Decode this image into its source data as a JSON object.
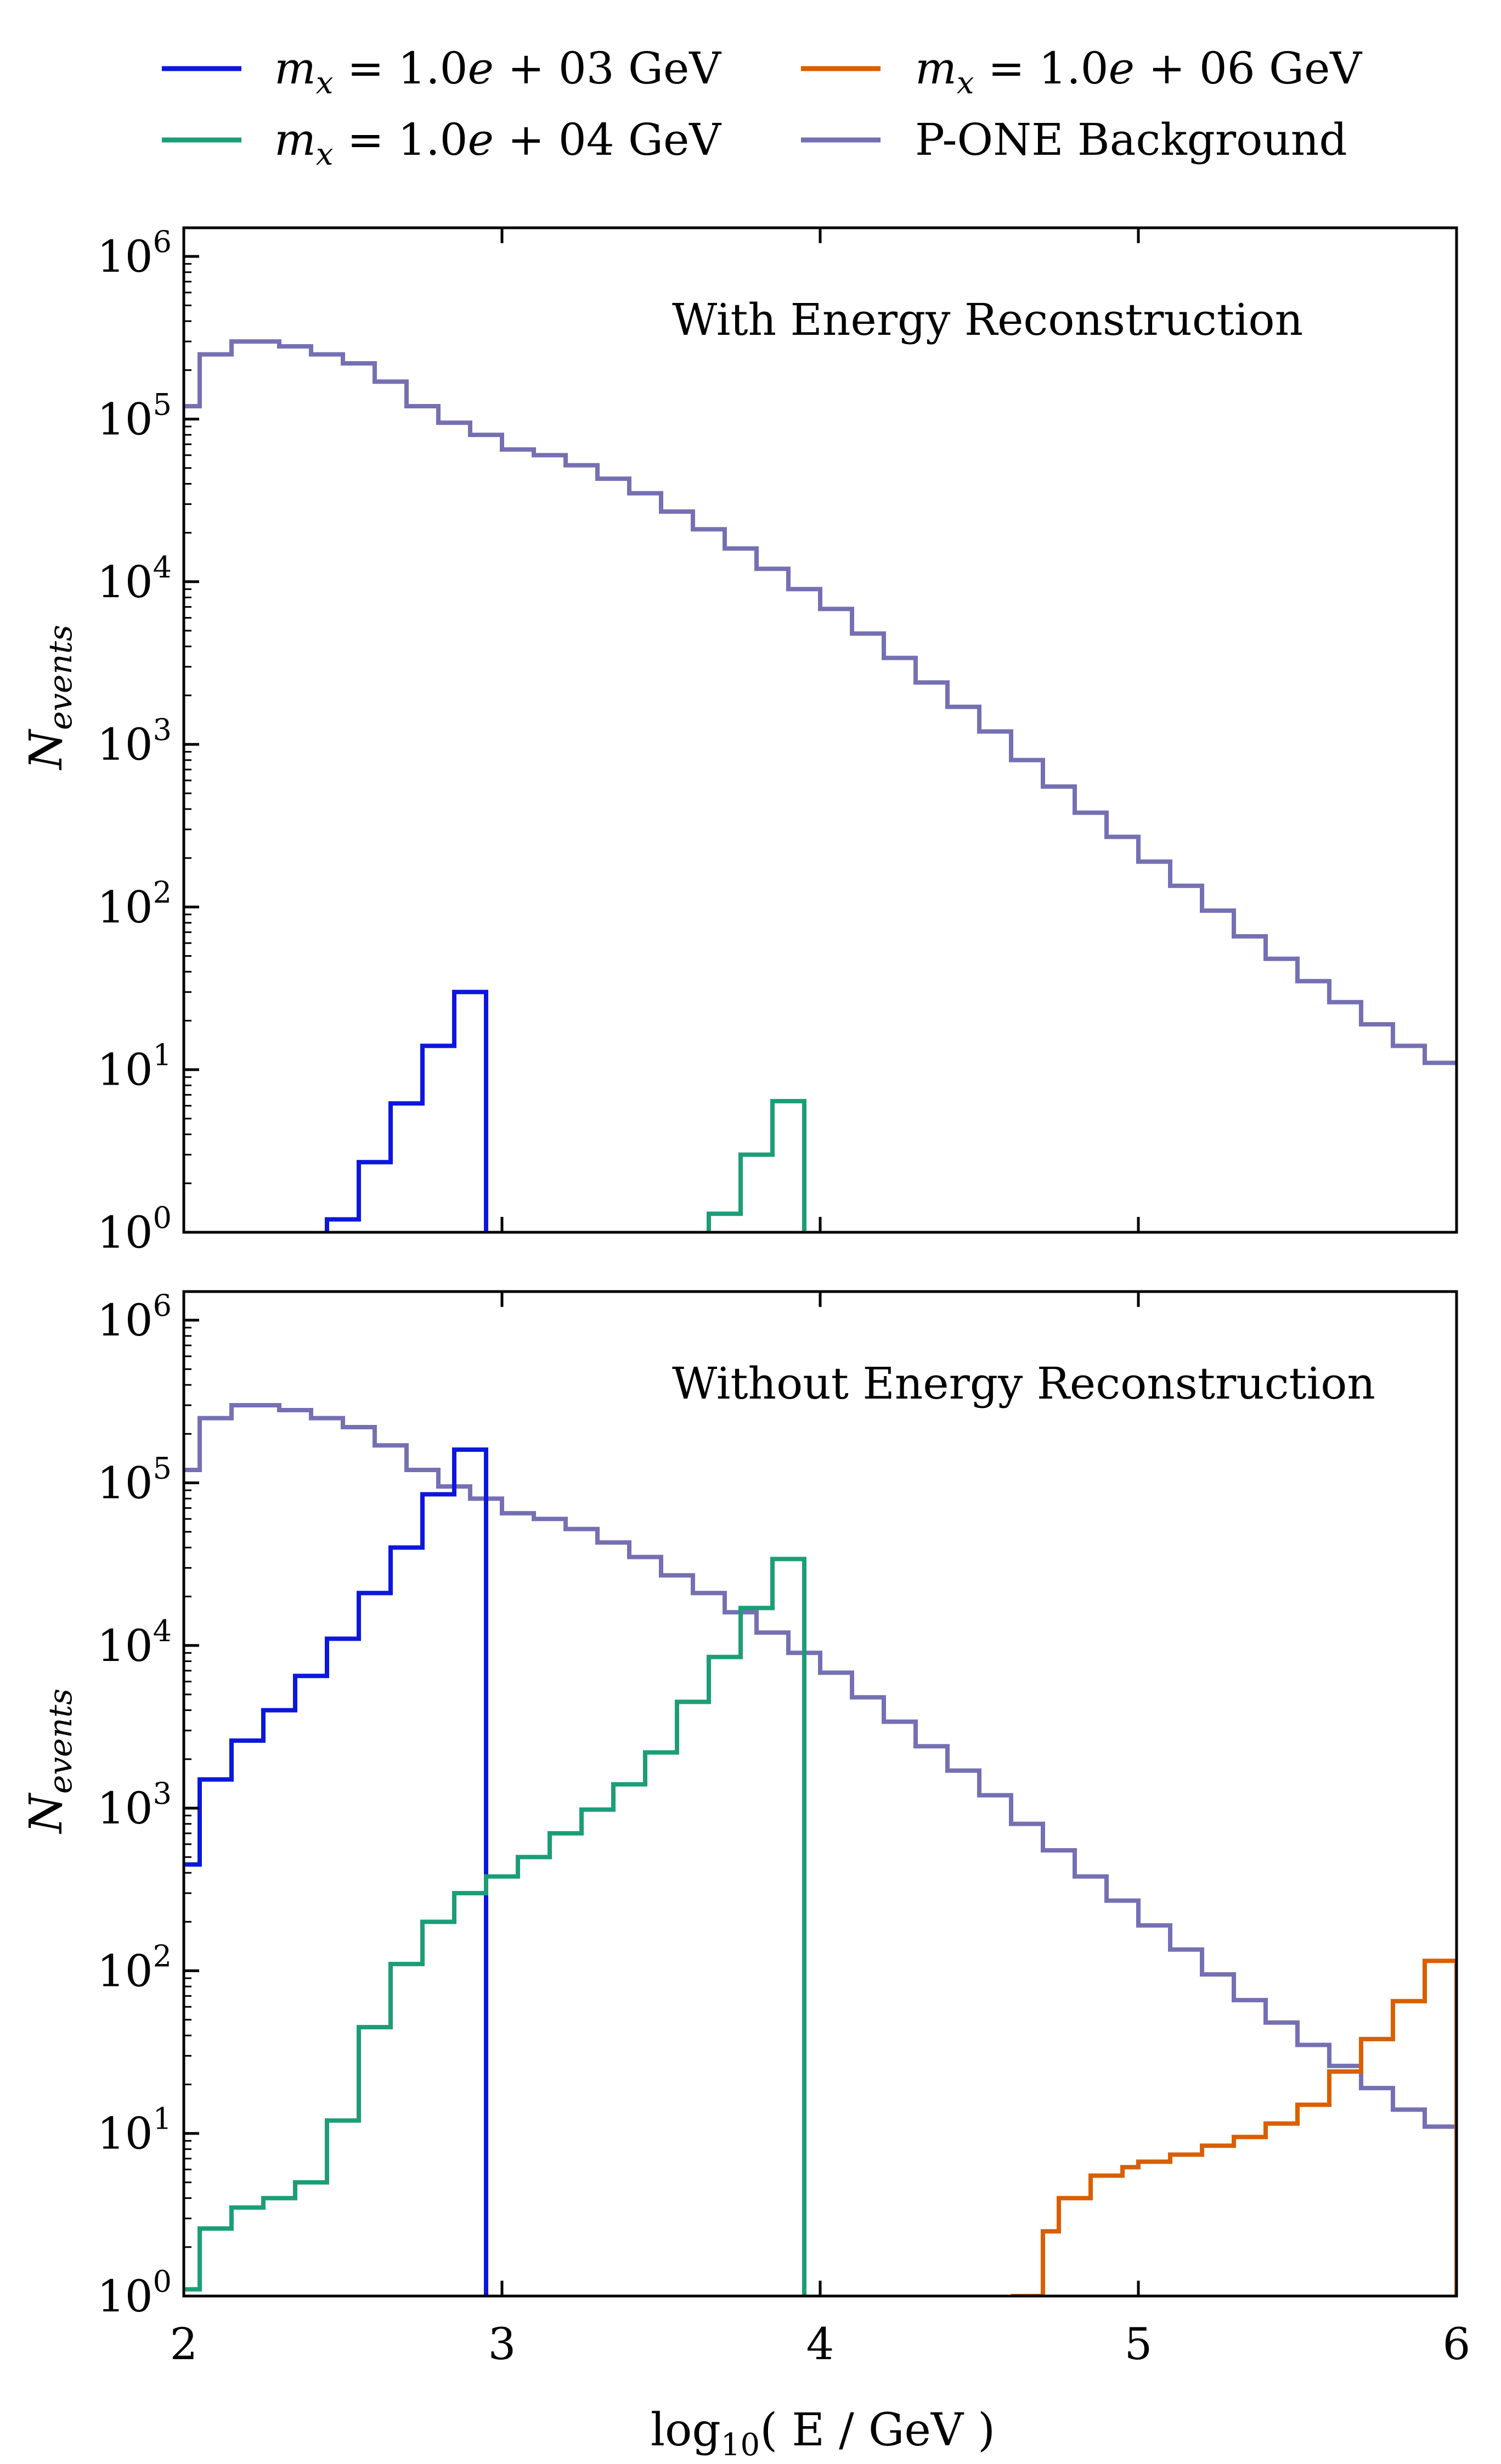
{
  "chart_data": [
    {
      "type": "line",
      "drawstyle": "steps",
      "panel": "top",
      "annotation": "With Energy Reconstruction",
      "ylabel": "N_events",
      "xlabel": "",
      "xlim": [
        2.0,
        6.0
      ],
      "ylim": [
        1,
        1500000
      ],
      "yscale": "log",
      "bin_edges": [
        2.0,
        2.05,
        2.1,
        2.15,
        2.2,
        2.25,
        2.3,
        2.35,
        2.4,
        2.45,
        2.5,
        2.55,
        2.6,
        2.65,
        2.7,
        2.75,
        2.8,
        2.85,
        2.9,
        2.95,
        3.0,
        3.05,
        3.1,
        3.15,
        3.2,
        3.25,
        3.3,
        3.35,
        3.4,
        3.45,
        3.5,
        3.55,
        3.6,
        3.65,
        3.7,
        3.75,
        3.8,
        3.85,
        3.9,
        3.95,
        4.0,
        4.05,
        4.1,
        4.15,
        4.2,
        4.25,
        4.3,
        4.35,
        4.4,
        4.45,
        4.5,
        4.55,
        4.6,
        4.65,
        4.7,
        4.75,
        4.8,
        4.85,
        4.9,
        4.95,
        5.0,
        5.05,
        5.1,
        5.15,
        5.2,
        5.25,
        5.3,
        5.35,
        5.4,
        5.45,
        5.5,
        5.55,
        5.6,
        5.65,
        5.7,
        5.75,
        5.8,
        5.85,
        5.9,
        5.95,
        6.0
      ],
      "series": [
        {
          "name": "m_x = 1.0e + 03 GeV",
          "color": "#0b18dc",
          "values": [
            null,
            null,
            null,
            null,
            null,
            null,
            null,
            null,
            null,
            1.2,
            1.2,
            2.7,
            2.7,
            6.2,
            6.2,
            14,
            14,
            30,
            30,
            null,
            null,
            null,
            null,
            null,
            null,
            null,
            null,
            null,
            null,
            null,
            null,
            null,
            null,
            null,
            null,
            null,
            null,
            null,
            null,
            null,
            null,
            null,
            null,
            null,
            null,
            null,
            null,
            null,
            null,
            null,
            null,
            null,
            null,
            null,
            null,
            null,
            null,
            null,
            null,
            null,
            null,
            null,
            null,
            null,
            null,
            null,
            null,
            null,
            null,
            null,
            null,
            null,
            null,
            null,
            null,
            null,
            null,
            null,
            null,
            null
          ]
        },
        {
          "name": "m_x = 1.0e + 04 GeV",
          "color": "#1b9e77",
          "values": [
            null,
            null,
            null,
            null,
            null,
            null,
            null,
            null,
            null,
            null,
            null,
            null,
            null,
            null,
            null,
            null,
            null,
            null,
            null,
            null,
            null,
            null,
            null,
            null,
            null,
            null,
            null,
            null,
            null,
            null,
            null,
            null,
            null,
            1.3,
            1.3,
            3.0,
            3.0,
            6.4,
            6.4,
            null,
            null,
            null,
            null,
            null,
            null,
            null,
            null,
            null,
            null,
            null,
            null,
            null,
            null,
            null,
            null,
            null,
            null,
            null,
            null,
            null,
            null,
            null,
            null,
            null,
            null,
            null,
            null,
            null,
            null,
            null,
            null,
            null,
            null,
            null,
            null,
            null,
            null,
            null,
            null,
            null
          ]
        },
        {
          "name": "P-ONE Background",
          "color": "#7570b3",
          "values": [
            120000,
            250000,
            250000,
            300000,
            300000,
            300000,
            280000,
            280000,
            250000,
            250000,
            220000,
            220000,
            170000,
            170000,
            120000,
            120000,
            95000,
            95000,
            80000,
            80000,
            65000,
            65000,
            60000,
            60000,
            52000,
            52000,
            43000,
            43000,
            35000,
            35000,
            27000,
            27000,
            21000,
            21000,
            16000,
            16000,
            12000,
            12000,
            9000,
            9000,
            6800,
            6800,
            4800,
            4800,
            3400,
            3400,
            2400,
            2400,
            1700,
            1700,
            1200,
            1200,
            800,
            800,
            550,
            550,
            380,
            380,
            270,
            270,
            190,
            190,
            135,
            135,
            95,
            95,
            66,
            66,
            48,
            48,
            35,
            35,
            26,
            26,
            19,
            19,
            14,
            14,
            11,
            11
          ]
        }
      ]
    },
    {
      "type": "line",
      "drawstyle": "steps",
      "panel": "bottom",
      "annotation": "Without Energy Reconstruction",
      "ylabel": "N_events",
      "xlabel": "log10( E / GeV )",
      "xlim": [
        2.0,
        6.0
      ],
      "ylim": [
        1,
        1500000
      ],
      "yscale": "log",
      "bin_edges": [
        2.0,
        2.05,
        2.1,
        2.15,
        2.2,
        2.25,
        2.3,
        2.35,
        2.4,
        2.45,
        2.5,
        2.55,
        2.6,
        2.65,
        2.7,
        2.75,
        2.8,
        2.85,
        2.9,
        2.95,
        3.0,
        3.05,
        3.1,
        3.15,
        3.2,
        3.25,
        3.3,
        3.35,
        3.4,
        3.45,
        3.5,
        3.55,
        3.6,
        3.65,
        3.7,
        3.75,
        3.8,
        3.85,
        3.9,
        3.95,
        4.0,
        4.05,
        4.1,
        4.15,
        4.2,
        4.25,
        4.3,
        4.35,
        4.4,
        4.45,
        4.5,
        4.55,
        4.6,
        4.65,
        4.7,
        4.75,
        4.8,
        4.85,
        4.9,
        4.95,
        5.0,
        5.05,
        5.1,
        5.15,
        5.2,
        5.25,
        5.3,
        5.35,
        5.4,
        5.45,
        5.5,
        5.55,
        5.6,
        5.65,
        5.7,
        5.75,
        5.8,
        5.85,
        5.9,
        5.95,
        6.0
      ],
      "series": [
        {
          "name": "m_x = 1.0e + 03 GeV",
          "color": "#0b18dc",
          "values": [
            450,
            1500,
            1500,
            2600,
            2600,
            4000,
            4000,
            6500,
            6500,
            11000,
            11000,
            21000,
            21000,
            40000,
            40000,
            85000,
            85000,
            160000,
            160000,
            null,
            null,
            null,
            null,
            null,
            null,
            null,
            null,
            null,
            null,
            null,
            null,
            null,
            null,
            null,
            null,
            null,
            null,
            null,
            null,
            null,
            null,
            null,
            null,
            null,
            null,
            null,
            null,
            null,
            null,
            null,
            null,
            null,
            null,
            null,
            null,
            null,
            null,
            null,
            null,
            null,
            null,
            null,
            null,
            null,
            null,
            null,
            null,
            null,
            null,
            null,
            null,
            null,
            null,
            null,
            null,
            null,
            null,
            null,
            null,
            null
          ]
        },
        {
          "name": "m_x = 1.0e + 04 GeV",
          "color": "#1b9e77",
          "values": [
            1.1,
            2.6,
            2.6,
            3.5,
            3.5,
            4.0,
            4.0,
            5.0,
            5.0,
            12,
            12,
            45,
            45,
            110,
            110,
            200,
            200,
            300,
            300,
            380,
            380,
            500,
            500,
            700,
            700,
            980,
            980,
            1400,
            1400,
            2200,
            2200,
            4500,
            4500,
            8500,
            8500,
            17000,
            17000,
            34000,
            34000,
            null,
            null,
            null,
            null,
            null,
            null,
            null,
            null,
            null,
            null,
            null,
            null,
            null,
            null,
            null,
            null,
            null,
            null,
            null,
            null,
            null,
            null,
            null,
            null,
            null,
            null,
            null,
            null,
            null,
            null,
            null,
            null,
            null,
            null,
            null,
            null,
            null,
            null,
            null,
            null,
            null
          ]
        },
        {
          "name": "m_x = 1.0e + 06 GeV",
          "color": "#d95f02",
          "values": [
            null,
            null,
            null,
            null,
            null,
            null,
            null,
            null,
            null,
            null,
            null,
            null,
            null,
            null,
            null,
            null,
            null,
            null,
            null,
            null,
            null,
            null,
            null,
            null,
            null,
            null,
            null,
            null,
            null,
            null,
            null,
            null,
            null,
            null,
            null,
            null,
            null,
            null,
            null,
            null,
            null,
            null,
            null,
            null,
            null,
            null,
            null,
            null,
            null,
            null,
            null,
            null,
            1.0,
            1.0,
            2.5,
            4.0,
            4.0,
            5.5,
            5.5,
            6.2,
            6.7,
            6.7,
            7.4,
            7.4,
            8.4,
            8.4,
            9.5,
            9.5,
            11.5,
            11.5,
            15,
            15,
            24,
            24,
            38,
            38,
            65,
            65,
            115,
            115
          ]
        },
        {
          "name": "P-ONE Background",
          "color": "#7570b3",
          "values": [
            120000,
            250000,
            250000,
            300000,
            300000,
            300000,
            280000,
            280000,
            250000,
            250000,
            220000,
            220000,
            170000,
            170000,
            120000,
            120000,
            95000,
            95000,
            80000,
            80000,
            65000,
            65000,
            60000,
            60000,
            52000,
            52000,
            43000,
            43000,
            35000,
            35000,
            27000,
            27000,
            21000,
            21000,
            16000,
            16000,
            12000,
            12000,
            9000,
            9000,
            6800,
            6800,
            4800,
            4800,
            3400,
            3400,
            2400,
            2400,
            1700,
            1700,
            1200,
            1200,
            800,
            800,
            550,
            550,
            380,
            380,
            270,
            270,
            190,
            190,
            135,
            135,
            95,
            95,
            66,
            66,
            48,
            48,
            35,
            35,
            26,
            26,
            19,
            19,
            14,
            14,
            11,
            11
          ]
        }
      ]
    }
  ],
  "legend": {
    "placement": "top",
    "entries": [
      {
        "label_var": "m",
        "label_sub": "x",
        "label_rest": " = 1.0",
        "label_e": "e",
        "label_tail": " + 03 GeV",
        "color": "#0b18dc"
      },
      {
        "label_var": "m",
        "label_sub": "x",
        "label_rest": " = 1.0",
        "label_e": "e",
        "label_tail": " + 04 GeV",
        "color": "#1b9e77"
      },
      {
        "label_var": "m",
        "label_sub": "x",
        "label_rest": " = 1.0",
        "label_e": "e",
        "label_tail": " + 06 GeV",
        "color": "#d95f02"
      },
      {
        "label_plain": "P-ONE Background",
        "color": "#7570b3"
      }
    ]
  },
  "axes_text": {
    "ylabel_main": "N",
    "ylabel_sub": "events",
    "xlabel_pre": "log",
    "xlabel_sub": "10",
    "xlabel_post": "( E / GeV )",
    "x_ticks": [
      "2",
      "3",
      "4",
      "5",
      "6"
    ],
    "y_tick_base": "10",
    "y_tick_exponents": [
      "0",
      "1",
      "2",
      "3",
      "4",
      "5",
      "6"
    ]
  },
  "annotations": {
    "top": "With Energy Reconstruction",
    "bottom": "Without Energy Reconstruction"
  }
}
